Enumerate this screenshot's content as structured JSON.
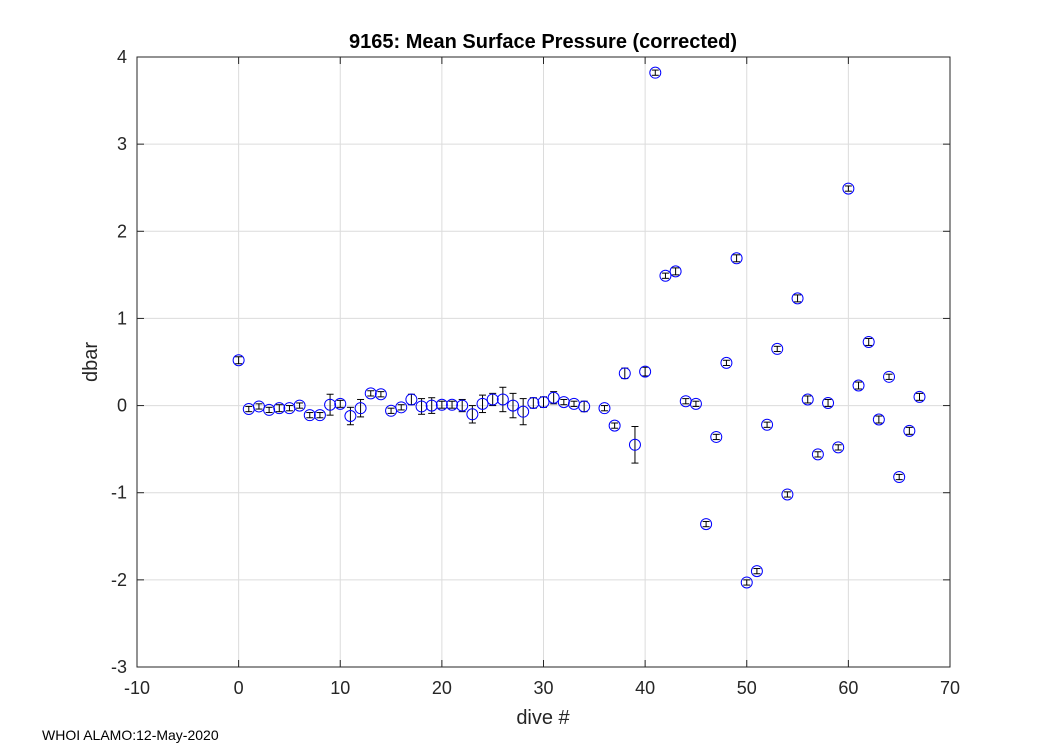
{
  "footer": "WHOI ALAMO:12-May-2020",
  "chart_data": {
    "type": "scatter",
    "title": "9165: Mean Surface Pressure (corrected)",
    "xlabel": "dive #",
    "ylabel": "dbar",
    "xlim": [
      -10,
      70
    ],
    "ylim": [
      -3,
      4
    ],
    "xticks": [
      -10,
      0,
      10,
      20,
      30,
      40,
      50,
      60,
      70
    ],
    "yticks": [
      -3,
      -2,
      -1,
      0,
      1,
      2,
      3,
      4
    ],
    "grid": true,
    "marker": "open-circle with error bars",
    "color": "#0000ff",
    "errorbar_color": "#000000",
    "points": [
      {
        "x": 0,
        "y": 0.52,
        "err": 0.04
      },
      {
        "x": 1,
        "y": -0.04,
        "err": 0.03
      },
      {
        "x": 2,
        "y": -0.01,
        "err": 0.03
      },
      {
        "x": 3,
        "y": -0.05,
        "err": 0.03
      },
      {
        "x": 4,
        "y": -0.03,
        "err": 0.04
      },
      {
        "x": 5,
        "y": -0.03,
        "err": 0.03
      },
      {
        "x": 6,
        "y": 0.0,
        "err": 0.03
      },
      {
        "x": 7,
        "y": -0.11,
        "err": 0.03
      },
      {
        "x": 8,
        "y": -0.11,
        "err": 0.03
      },
      {
        "x": 9,
        "y": 0.01,
        "err": 0.12
      },
      {
        "x": 10,
        "y": 0.02,
        "err": 0.04
      },
      {
        "x": 11,
        "y": -0.12,
        "err": 0.1
      },
      {
        "x": 12,
        "y": -0.03,
        "err": 0.1
      },
      {
        "x": 13,
        "y": 0.14,
        "err": 0.03
      },
      {
        "x": 14,
        "y": 0.13,
        "err": 0.03
      },
      {
        "x": 15,
        "y": -0.06,
        "err": 0.03
      },
      {
        "x": 16,
        "y": -0.02,
        "err": 0.03
      },
      {
        "x": 17,
        "y": 0.07,
        "err": 0.06
      },
      {
        "x": 18,
        "y": -0.01,
        "err": 0.09
      },
      {
        "x": 19,
        "y": 0.0,
        "err": 0.09
      },
      {
        "x": 20,
        "y": 0.01,
        "err": 0.04
      },
      {
        "x": 21,
        "y": 0.01,
        "err": 0.04
      },
      {
        "x": 22,
        "y": 0.0,
        "err": 0.07
      },
      {
        "x": 23,
        "y": -0.1,
        "err": 0.1
      },
      {
        "x": 24,
        "y": 0.02,
        "err": 0.1
      },
      {
        "x": 25,
        "y": 0.07,
        "err": 0.07
      },
      {
        "x": 26,
        "y": 0.07,
        "err": 0.14
      },
      {
        "x": 27,
        "y": 0.0,
        "err": 0.14
      },
      {
        "x": 28,
        "y": -0.07,
        "err": 0.15
      },
      {
        "x": 29,
        "y": 0.03,
        "err": 0.06
      },
      {
        "x": 30,
        "y": 0.04,
        "err": 0.06
      },
      {
        "x": 31,
        "y": 0.09,
        "err": 0.07
      },
      {
        "x": 32,
        "y": 0.04,
        "err": 0.03
      },
      {
        "x": 33,
        "y": 0.02,
        "err": 0.03
      },
      {
        "x": 34,
        "y": -0.01,
        "err": 0.06
      },
      {
        "x": 36,
        "y": -0.03,
        "err": 0.03
      },
      {
        "x": 37,
        "y": -0.23,
        "err": 0.03
      },
      {
        "x": 38,
        "y": 0.37,
        "err": 0.06
      },
      {
        "x": 39,
        "y": -0.45,
        "err": 0.21
      },
      {
        "x": 40,
        "y": 0.39,
        "err": 0.05
      },
      {
        "x": 41,
        "y": 3.82,
        "err": 0.03
      },
      {
        "x": 42,
        "y": 1.49,
        "err": 0.03
      },
      {
        "x": 43,
        "y": 1.54,
        "err": 0.04
      },
      {
        "x": 44,
        "y": 0.05,
        "err": 0.03
      },
      {
        "x": 45,
        "y": 0.02,
        "err": 0.03
      },
      {
        "x": 46,
        "y": -1.36,
        "err": 0.03
      },
      {
        "x": 47,
        "y": -0.36,
        "err": 0.03
      },
      {
        "x": 48,
        "y": 0.49,
        "err": 0.03
      },
      {
        "x": 49,
        "y": 1.69,
        "err": 0.04
      },
      {
        "x": 50,
        "y": -2.03,
        "err": 0.03
      },
      {
        "x": 51,
        "y": -1.9,
        "err": 0.03
      },
      {
        "x": 52,
        "y": -0.22,
        "err": 0.03
      },
      {
        "x": 53,
        "y": 0.65,
        "err": 0.03
      },
      {
        "x": 54,
        "y": -1.02,
        "err": 0.03
      },
      {
        "x": 55,
        "y": 1.23,
        "err": 0.04
      },
      {
        "x": 56,
        "y": 0.07,
        "err": 0.04
      },
      {
        "x": 57,
        "y": -0.56,
        "err": 0.03
      },
      {
        "x": 58,
        "y": 0.03,
        "err": 0.04
      },
      {
        "x": 59,
        "y": -0.48,
        "err": 0.03
      },
      {
        "x": 60,
        "y": 2.49,
        "err": 0.03
      },
      {
        "x": 61,
        "y": 0.23,
        "err": 0.04
      },
      {
        "x": 62,
        "y": 0.73,
        "err": 0.04
      },
      {
        "x": 63,
        "y": -0.16,
        "err": 0.04
      },
      {
        "x": 64,
        "y": 0.33,
        "err": 0.03
      },
      {
        "x": 65,
        "y": -0.82,
        "err": 0.03
      },
      {
        "x": 66,
        "y": -0.29,
        "err": 0.04
      },
      {
        "x": 67,
        "y": 0.1,
        "err": 0.04
      }
    ]
  }
}
